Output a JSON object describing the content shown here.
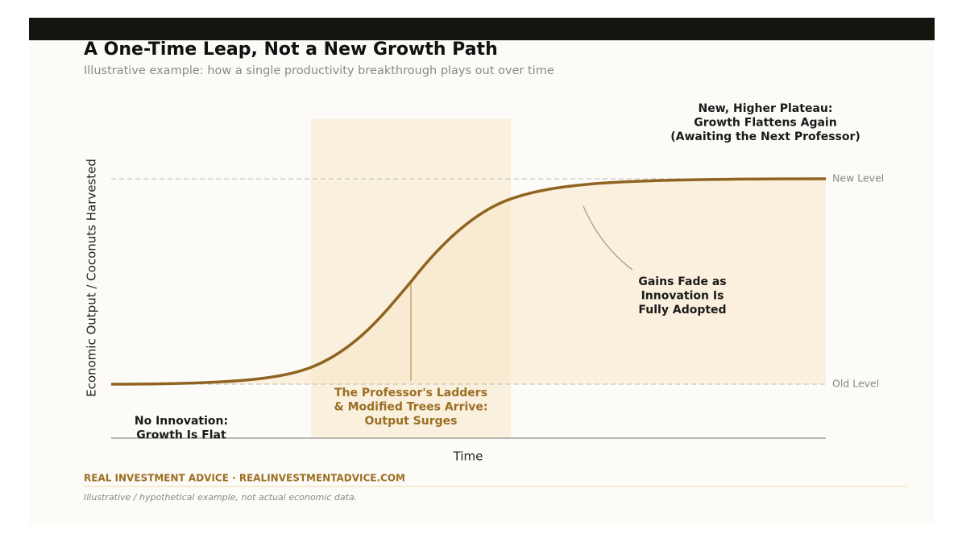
{
  "header": {
    "title": "A One-Time Leap, Not a New Growth Path",
    "subtitle": "Illustrative example: how a single productivity breakthrough plays out over time"
  },
  "axes": {
    "y_label": "Economic Output / Coconuts Harvested",
    "x_label": "Time"
  },
  "levels": {
    "new": "New Level",
    "old": "Old Level"
  },
  "annotations": {
    "plateau": [
      "New, Higher Plateau:",
      "Growth Flattens Again",
      "(Awaiting the Next Professor)"
    ],
    "fade": [
      "Gains Fade as",
      "Innovation Is",
      "Fully Adopted"
    ],
    "surge": [
      "The Professor's Ladders",
      "& Modified Trees Arrive:",
      "Output Surges"
    ],
    "flat": [
      "No Innovation:",
      "Growth Is Flat"
    ]
  },
  "footer": {
    "source": "REAL INVESTMENT ADVICE  ·  REALINVESTMENTADVICE.COM",
    "note": "Illustrative / hypothetical example, not actual economic data."
  }
}
